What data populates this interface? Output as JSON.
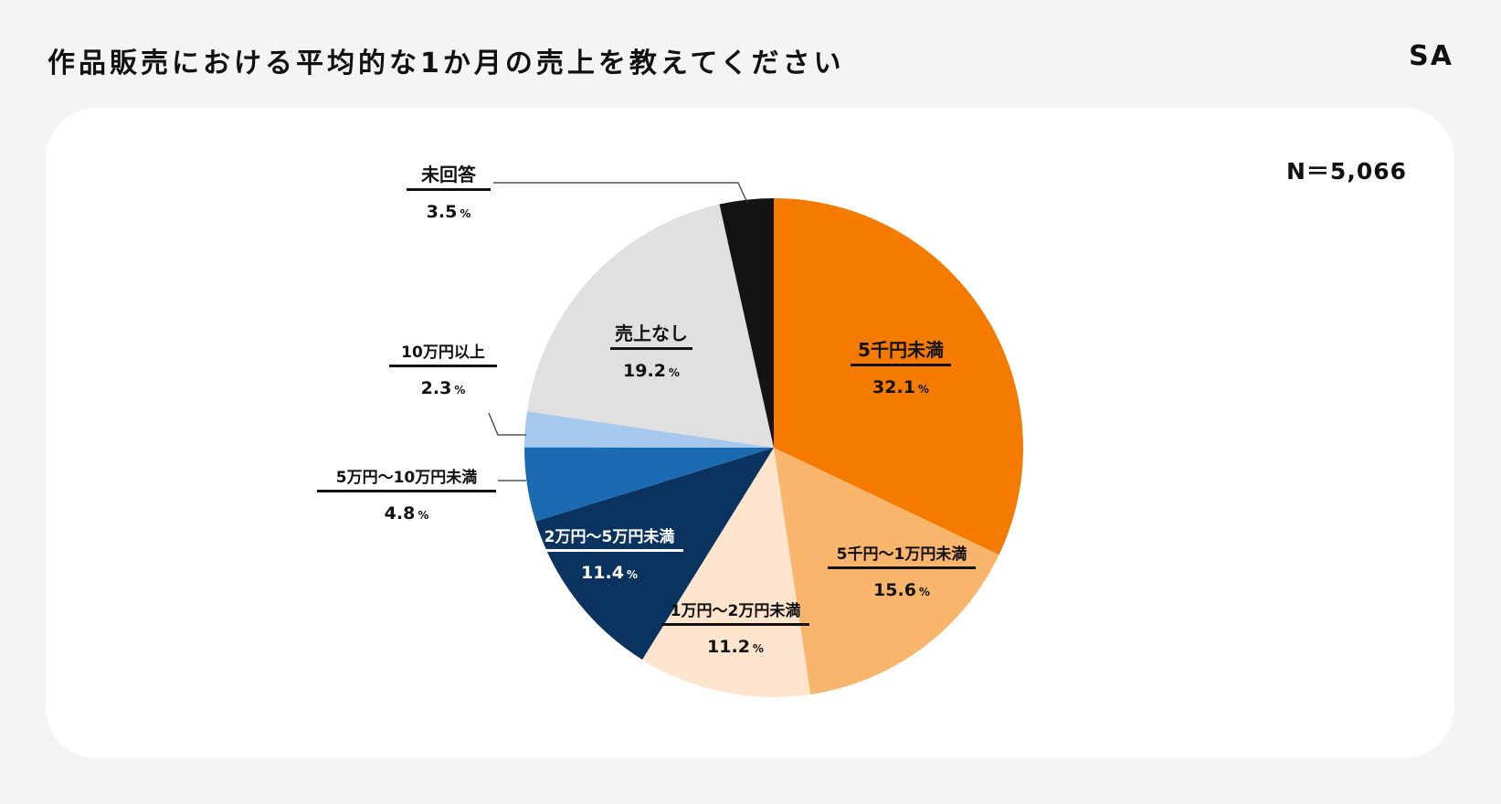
{
  "header": {
    "title": "作品販売における平均的な1か月の売上を教えてください",
    "tag": "SA"
  },
  "sample_size": "N＝5,066",
  "chart_data": {
    "type": "pie",
    "title": "作品販売における平均的な1か月の売上を教えてください",
    "n_label": "N＝5,066",
    "start_angle_deg": 0,
    "direction": "clockwise",
    "slices": [
      {
        "label": "5千円未満",
        "value": 32.1,
        "display": "32.1",
        "color": "#f47b00"
      },
      {
        "label": "5千円〜1万円未満",
        "value": 15.6,
        "display": "15.6",
        "color": "#fab56c"
      },
      {
        "label": "1万円〜2万円未満",
        "value": 11.2,
        "display": "11.2",
        "color": "#fde4cc"
      },
      {
        "label": "2万円〜5万円未満",
        "value": 11.4,
        "display": "11.4",
        "color": "#0b3360"
      },
      {
        "label": "5万円〜10万円未満",
        "value": 4.8,
        "display": "4.8",
        "color": "#1c6ab1"
      },
      {
        "label": "10万円以上",
        "value": 2.3,
        "display": "2.3",
        "color": "#a6c8ec"
      },
      {
        "label": "売上なし",
        "value": 19.2,
        "display": "19.2",
        "color": "#e0e0e0"
      },
      {
        "label": "未回答",
        "value": 3.5,
        "display": "3.5",
        "color": "#141414"
      }
    ],
    "unit": "%"
  }
}
